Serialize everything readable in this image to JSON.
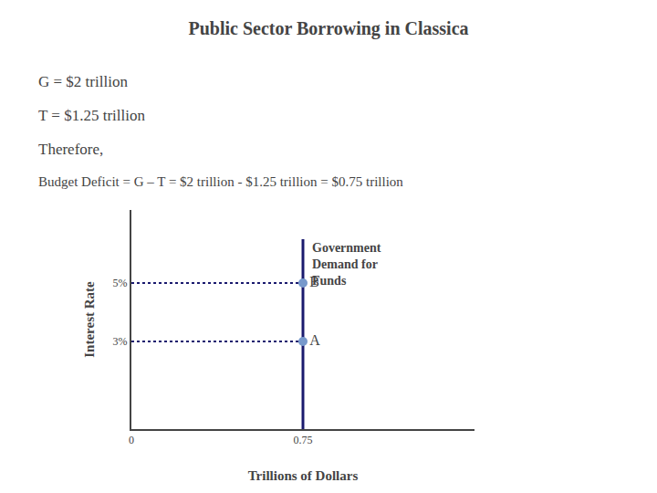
{
  "chart_data": {
    "type": "line",
    "title": "Public Sector Borrowing in Classica",
    "annotations": [
      "G = $2 trillion",
      "T = $1.25 trillion",
      "Therefore,",
      "Budget Deficit = G – T = $2 trillion - $1.25 trillion = $0.75 trillion"
    ],
    "xlabel": "Trillions of Dollars",
    "ylabel": "Interest Rate",
    "xlim": [
      0,
      1.5
    ],
    "ylim": [
      0,
      7.5
    ],
    "xticks": [
      0,
      0.75
    ],
    "yticks": [
      {
        "value": 3,
        "label": "3%"
      },
      {
        "value": 5,
        "label": "5%"
      }
    ],
    "grid": false,
    "series": [
      {
        "type": "line",
        "x": [
          0.75,
          0.75
        ],
        "values": [
          0,
          6.5
        ],
        "color": "#1a1a6e",
        "line_style": "solid",
        "label": "Government\nDemand for\nFunds"
      },
      {
        "type": "line",
        "x": [
          0,
          0.75
        ],
        "values": [
          5,
          5
        ],
        "color": "#1a1a6e",
        "line_style": "dotted"
      },
      {
        "type": "line",
        "x": [
          0,
          0.75
        ],
        "values": [
          3,
          3
        ],
        "color": "#1a1a6e",
        "line_style": "dotted"
      },
      {
        "type": "scatter",
        "x": [
          0.75,
          0.75
        ],
        "values": [
          5,
          3
        ],
        "color": "#7799cc",
        "marker": "circle",
        "point_labels": [
          "B",
          "A"
        ]
      }
    ]
  }
}
